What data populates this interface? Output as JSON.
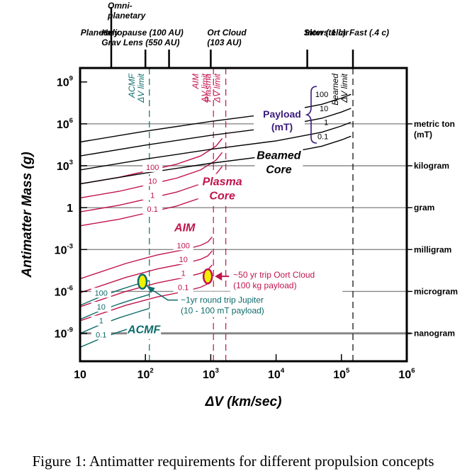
{
  "chart_data": {
    "type": "line",
    "caption": "Figure 1: Antimatter requirements for different propulsion concepts",
    "xlabel": "ΔV (km/sec)",
    "ylabel": "Antimatter Mass (g)",
    "x_scale": "log",
    "y_scale": "log",
    "xlim": [
      10,
      1000000
    ],
    "ylim": [
      1e-11,
      10000000000.0
    ],
    "x_ticks": [
      {
        "value": 10,
        "base": "10",
        "exp": ""
      },
      {
        "value": 100,
        "base": "10",
        "exp": "2"
      },
      {
        "value": 1000,
        "base": "10",
        "exp": "3"
      },
      {
        "value": 10000,
        "base": "10",
        "exp": "4"
      },
      {
        "value": 100000,
        "base": "10",
        "exp": "5"
      },
      {
        "value": 1000000,
        "base": "10",
        "exp": "6"
      }
    ],
    "y_ticks": [
      {
        "value": 1000000000.0,
        "base": "10",
        "exp": "9"
      },
      {
        "value": 1000000.0,
        "base": "10",
        "exp": "6"
      },
      {
        "value": 1000.0,
        "base": "10",
        "exp": "3"
      },
      {
        "value": 1,
        "base": "1",
        "exp": ""
      },
      {
        "value": 0.001,
        "base": "10",
        "exp": "-3"
      },
      {
        "value": 1e-06,
        "base": "10",
        "exp": "-6"
      },
      {
        "value": 1e-09,
        "base": "10",
        "exp": "-9"
      }
    ],
    "mass_references": [
      {
        "value": 1000000.0,
        "label": [
          "metric ton",
          "(mT)"
        ]
      },
      {
        "value": 1000.0,
        "label": [
          "kilogram"
        ]
      },
      {
        "value": 1,
        "label": [
          "gram"
        ]
      },
      {
        "value": 0.001,
        "label": [
          "milligram"
        ]
      },
      {
        "value": 1e-06,
        "label": [
          "microgram"
        ]
      },
      {
        "value": 1e-09,
        "label": [
          "nanogram"
        ]
      }
    ],
    "top_axis": [
      {
        "x": 30,
        "label": [
          "Omni-",
          "planetary"
        ],
        "row": "high"
      },
      {
        "x": 100,
        "label": [
          "Heliopause (100 AU)",
          "Grav Lens (550 AU)"
        ],
        "row": "low"
      },
      {
        "x": 230,
        "label": [],
        "row": "low"
      },
      {
        "x": 1000,
        "label": [
          "Ort Cloud",
          "(103 AU)"
        ],
        "row": "low"
      },
      {
        "x": 30000,
        "label": [
          "Slow (.1 c)"
        ],
        "row": "low"
      },
      {
        "x": 150000,
        "label": [
          "Fast (.4 c)"
        ],
        "row": "low"
      }
    ],
    "top_text": [
      {
        "text": [
          "Planetary"
        ],
        "x": 20
      },
      {
        "text": [
          "Interstellar"
        ],
        "x": 60000
      }
    ],
    "limits": [
      {
        "x": 115,
        "label": [
          "ACMF",
          "ΔV limit"
        ],
        "color": "#0f6b6b"
      },
      {
        "x": 1100,
        "label": [
          "AIM",
          "ΔV limit"
        ],
        "color": "#c0144c"
      },
      {
        "x": 1700,
        "label": [
          "Plasma",
          "ΔV limit"
        ],
        "color": "#c0144c"
      },
      {
        "x": 150000,
        "label": [
          "Beamed",
          "ΔV limit"
        ],
        "color": "#000000"
      }
    ],
    "series": [
      {
        "concept": "ACMF",
        "payload": "100",
        "color": "#0f6b6b",
        "points": [
          [
            10,
            1e-07
          ],
          [
            20,
            4e-07
          ],
          [
            40,
            1.3e-06
          ],
          [
            70,
            3e-06
          ],
          [
            100,
            5e-06
          ],
          [
            115,
            6e-06
          ]
        ]
      },
      {
        "concept": "ACMF",
        "payload": "10",
        "color": "#0f6b6b",
        "points": [
          [
            10,
            1e-08
          ],
          [
            20,
            4e-08
          ],
          [
            40,
            1.3e-07
          ],
          [
            70,
            3e-07
          ],
          [
            100,
            5e-07
          ],
          [
            115,
            6e-07
          ]
        ]
      },
      {
        "concept": "ACMF",
        "payload": "1",
        "color": "#0f6b6b",
        "points": [
          [
            10,
            1e-09
          ],
          [
            20,
            4e-09
          ],
          [
            40,
            1.3e-08
          ],
          [
            70,
            3e-08
          ],
          [
            100,
            5e-08
          ],
          [
            115,
            6e-08
          ]
        ]
      },
      {
        "concept": "ACMF",
        "payload": "0.1",
        "color": "#0f6b6b",
        "points": [
          [
            10,
            1e-10
          ],
          [
            20,
            4e-10
          ],
          [
            40,
            1.3e-09
          ],
          [
            70,
            3e-09
          ],
          [
            100,
            5e-09
          ],
          [
            115,
            6e-09
          ]
        ]
      },
      {
        "concept": "AIM",
        "payload": "100",
        "color": "#c0144c",
        "points": [
          [
            10,
            8e-06
          ],
          [
            50,
            0.0001
          ],
          [
            150,
            0.0004
          ],
          [
            400,
            0.001
          ],
          [
            700,
            0.002
          ],
          [
            900,
            0.0035
          ],
          [
            1050,
            0.008
          ]
        ]
      },
      {
        "concept": "AIM",
        "payload": "10",
        "color": "#c0144c",
        "points": [
          [
            10,
            8e-07
          ],
          [
            50,
            1e-05
          ],
          [
            150,
            4e-05
          ],
          [
            400,
            0.0001
          ],
          [
            700,
            0.0002
          ],
          [
            900,
            0.00035
          ],
          [
            1050,
            0.0008
          ]
        ]
      },
      {
        "concept": "AIM",
        "payload": "1",
        "color": "#c0144c",
        "points": [
          [
            10,
            8e-08
          ],
          [
            50,
            1e-06
          ],
          [
            150,
            4e-06
          ],
          [
            400,
            1e-05
          ],
          [
            700,
            2e-05
          ],
          [
            900,
            3.5e-05
          ],
          [
            1050,
            8e-05
          ]
        ]
      },
      {
        "concept": "AIM",
        "payload": "0.1",
        "color": "#c0144c",
        "points": [
          [
            10,
            8e-09
          ],
          [
            50,
            1e-07
          ],
          [
            150,
            4e-07
          ],
          [
            400,
            1e-06
          ],
          [
            700,
            2e-06
          ],
          [
            900,
            3.5e-06
          ],
          [
            1050,
            8e-06
          ]
        ]
      },
      {
        "concept": "Plasma",
        "payload": "100",
        "color": "#c0144c",
        "points": [
          [
            10,
            50
          ],
          [
            40,
            150
          ],
          [
            100,
            400
          ],
          [
            300,
            1300
          ],
          [
            700,
            5000
          ],
          [
            1200,
            25000
          ],
          [
            1500,
            90000
          ]
        ]
      },
      {
        "concept": "Plasma",
        "payload": "10",
        "color": "#c0144c",
        "points": [
          [
            10,
            5
          ],
          [
            40,
            15
          ],
          [
            100,
            40
          ],
          [
            300,
            130
          ],
          [
            700,
            500
          ],
          [
            1200,
            2500
          ],
          [
            1500,
            9000
          ]
        ]
      },
      {
        "concept": "Plasma",
        "payload": "1",
        "color": "#c0144c",
        "points": [
          [
            10,
            0.5
          ],
          [
            40,
            1.5
          ],
          [
            100,
            4
          ],
          [
            300,
            13
          ],
          [
            700,
            50
          ],
          [
            1200,
            250
          ],
          [
            1500,
            900
          ]
        ]
      },
      {
        "concept": "Plasma",
        "payload": "0.1",
        "color": "#c0144c",
        "points": [
          [
            10,
            0.05
          ],
          [
            40,
            0.15
          ],
          [
            100,
            0.4
          ],
          [
            300,
            1.3
          ],
          [
            700,
            5
          ],
          [
            1200,
            25
          ],
          [
            1500,
            90
          ]
        ]
      },
      {
        "concept": "Beamed",
        "payload": "100",
        "color": "#000000",
        "points": [
          [
            10,
            50000
          ],
          [
            100,
            300000
          ],
          [
            1000,
            1500000.0
          ],
          [
            10000,
            6000000.0
          ],
          [
            50000,
            25000000.0
          ],
          [
            100000,
            70000000.0
          ],
          [
            140000,
            130000000.0
          ]
        ]
      },
      {
        "concept": "Beamed",
        "payload": "10",
        "color": "#000000",
        "points": [
          [
            10,
            5000
          ],
          [
            100,
            30000
          ],
          [
            1000,
            150000
          ],
          [
            10000,
            600000
          ],
          [
            50000,
            2500000.0
          ],
          [
            100000,
            7000000.0
          ],
          [
            140000,
            13000000.0
          ]
        ]
      },
      {
        "concept": "Beamed",
        "payload": "1",
        "color": "#000000",
        "points": [
          [
            10,
            500
          ],
          [
            100,
            3000
          ],
          [
            1000,
            15000
          ],
          [
            10000,
            60000
          ],
          [
            50000,
            250000
          ],
          [
            100000,
            700000
          ],
          [
            140000,
            1300000.0
          ]
        ]
      },
      {
        "concept": "Beamed",
        "payload": "0.1",
        "color": "#000000",
        "points": [
          [
            10,
            50
          ],
          [
            100,
            300
          ],
          [
            1000,
            1500
          ],
          [
            10000,
            6000
          ],
          [
            50000,
            25000
          ],
          [
            100000,
            70000
          ],
          [
            140000,
            130000
          ]
        ]
      }
    ],
    "concept_labels": [
      {
        "text": [
          "Beamed",
          "Core"
        ],
        "x": 11000,
        "y": 3000,
        "color": "#000000"
      },
      {
        "text": [
          "Plasma",
          "Core"
        ],
        "x": 1500,
        "y": 40,
        "color": "#c0144c"
      },
      {
        "text": [
          "AIM"
        ],
        "x": 400,
        "y": 0.02,
        "color": "#c0144c"
      },
      {
        "text": [
          "ACMF"
        ],
        "x": 95,
        "y": 1e-09,
        "color": "#0f6b6b"
      }
    ],
    "payload_key": {
      "title": [
        "Payload",
        "(mT)"
      ],
      "labels": [
        "100",
        "10",
        "1",
        "0.1"
      ]
    },
    "markers": [
      {
        "x": 90,
        "y": 5e-06,
        "label": [
          "~1yr round trip Jupiter",
          "(10 - 100 mT payload)"
        ],
        "color": "#0f6b6b"
      },
      {
        "x": 900,
        "y": 1.2e-05,
        "label": [
          "~50 yr trip Oort Cloud",
          "(100 kg payload)"
        ],
        "color": "#c0144c"
      }
    ]
  }
}
